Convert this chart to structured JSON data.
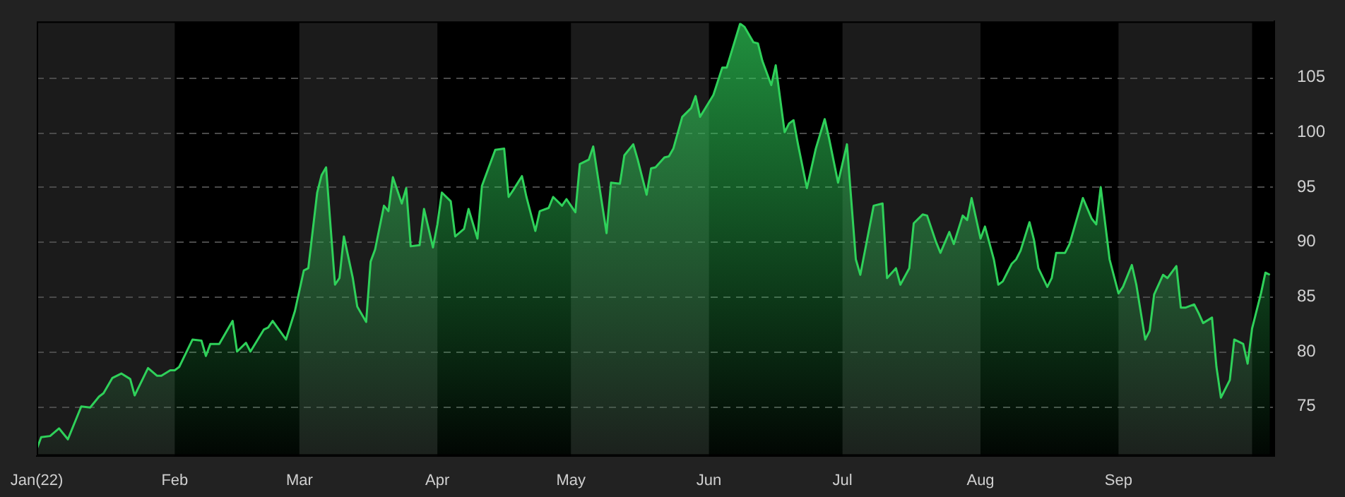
{
  "chart_data": {
    "type": "area",
    "x": [
      "2022-01-01",
      "2022-01-02",
      "2022-01-04",
      "2022-01-06",
      "2022-01-08",
      "2022-01-11",
      "2022-01-13",
      "2022-01-15",
      "2022-01-16",
      "2022-01-18",
      "2022-01-20",
      "2022-01-22",
      "2022-01-23",
      "2022-01-26",
      "2022-01-28",
      "2022-01-29",
      "2022-01-31",
      "2022-02-01",
      "2022-02-02",
      "2022-02-05",
      "2022-02-07",
      "2022-02-08",
      "2022-02-09",
      "2022-02-11",
      "2022-02-14",
      "2022-02-15",
      "2022-02-17",
      "2022-02-18",
      "2022-02-21",
      "2022-02-22",
      "2022-02-23",
      "2022-02-26",
      "2022-02-28",
      "2022-03-02",
      "2022-03-03",
      "2022-03-05",
      "2022-03-06",
      "2022-03-07",
      "2022-03-09",
      "2022-03-10",
      "2022-03-11",
      "2022-03-13",
      "2022-03-14",
      "2022-03-16",
      "2022-03-17",
      "2022-03-18",
      "2022-03-20",
      "2022-03-21",
      "2022-03-22",
      "2022-03-24",
      "2022-03-25",
      "2022-03-26",
      "2022-03-28",
      "2022-03-29",
      "2022-03-31",
      "2022-04-01",
      "2022-04-02",
      "2022-04-04",
      "2022-04-05",
      "2022-04-07",
      "2022-04-08",
      "2022-04-10",
      "2022-04-11",
      "2022-04-13",
      "2022-04-14",
      "2022-04-16",
      "2022-04-17",
      "2022-04-18",
      "2022-04-20",
      "2022-04-21",
      "2022-04-23",
      "2022-04-24",
      "2022-04-26",
      "2022-04-27",
      "2022-04-29",
      "2022-04-30",
      "2022-05-02",
      "2022-05-03",
      "2022-05-05",
      "2022-05-06",
      "2022-05-09",
      "2022-05-10",
      "2022-05-12",
      "2022-05-13",
      "2022-05-15",
      "2022-05-16",
      "2022-05-18",
      "2022-05-19",
      "2022-05-20",
      "2022-05-22",
      "2022-05-23",
      "2022-05-24",
      "2022-05-26",
      "2022-05-28",
      "2022-05-29",
      "2022-05-30",
      "2022-06-02",
      "2022-06-04",
      "2022-06-05",
      "2022-06-08",
      "2022-06-09",
      "2022-06-11",
      "2022-06-12",
      "2022-06-13",
      "2022-06-15",
      "2022-06-16",
      "2022-06-18",
      "2022-06-19",
      "2022-06-20",
      "2022-06-21",
      "2022-06-23",
      "2022-06-25",
      "2022-06-27",
      "2022-06-28",
      "2022-06-30",
      "2022-07-02",
      "2022-07-04",
      "2022-07-05",
      "2022-07-08",
      "2022-07-10",
      "2022-07-11",
      "2022-07-13",
      "2022-07-14",
      "2022-07-16",
      "2022-07-17",
      "2022-07-19",
      "2022-07-20",
      "2022-07-22",
      "2022-07-23",
      "2022-07-25",
      "2022-07-26",
      "2022-07-28",
      "2022-07-29",
      "2022-07-30",
      "2022-08-01",
      "2022-08-02",
      "2022-08-04",
      "2022-08-05",
      "2022-08-06",
      "2022-08-08",
      "2022-08-09",
      "2022-08-10",
      "2022-08-12",
      "2022-08-13",
      "2022-08-14",
      "2022-08-16",
      "2022-08-17",
      "2022-08-18",
      "2022-08-20",
      "2022-08-21",
      "2022-08-23",
      "2022-08-24",
      "2022-08-26",
      "2022-08-27",
      "2022-08-28",
      "2022-08-30",
      "2022-09-01",
      "2022-09-02",
      "2022-09-04",
      "2022-09-05",
      "2022-09-07",
      "2022-09-08",
      "2022-09-09",
      "2022-09-11",
      "2022-09-12",
      "2022-09-14",
      "2022-09-15",
      "2022-09-16",
      "2022-09-18",
      "2022-09-19",
      "2022-09-20",
      "2022-09-22",
      "2022-09-23",
      "2022-09-24",
      "2022-09-26",
      "2022-09-27",
      "2022-09-29",
      "2022-09-30",
      "2022-10-01",
      "2022-10-03",
      "2022-10-04",
      "2022-10-05"
    ],
    "series": [
      {
        "color": "#2fd15a",
        "values": [
          71.1,
          72.2,
          72.3,
          73.0,
          72.0,
          75.0,
          74.9,
          75.9,
          76.2,
          77.6,
          78.0,
          77.5,
          76.0,
          78.5,
          77.8,
          77.8,
          78.3,
          78.3,
          78.6,
          81.1,
          81.0,
          79.6,
          80.7,
          80.7,
          82.8,
          80.0,
          80.8,
          80.0,
          82.0,
          82.2,
          82.8,
          81.1,
          83.7,
          87.4,
          87.6,
          94.5,
          96.1,
          96.8,
          86.1,
          86.7,
          90.5,
          86.7,
          84.1,
          82.7,
          88.2,
          89.3,
          93.3,
          92.8,
          95.9,
          93.5,
          94.9,
          89.6,
          89.7,
          93.0,
          89.5,
          91.6,
          94.5,
          93.7,
          90.5,
          91.2,
          93.0,
          90.3,
          95.1,
          97.3,
          98.4,
          98.5,
          94.1,
          94.7,
          96.0,
          94.1,
          91.0,
          92.8,
          93.1,
          94.1,
          93.3,
          93.9,
          92.7,
          97.1,
          97.5,
          98.7,
          90.8,
          95.4,
          95.3,
          97.9,
          98.9,
          97.5,
          94.3,
          96.7,
          96.8,
          97.7,
          97.8,
          98.5,
          101.4,
          102.2,
          103.3,
          101.4,
          103.4,
          105.9,
          105.9,
          109.9,
          109.6,
          108.2,
          108.1,
          106.5,
          104.3,
          106.1,
          100.0,
          100.8,
          101.1,
          98.9,
          94.9,
          98.5,
          101.2,
          99.4,
          95.4,
          98.9,
          88.4,
          87.0,
          93.3,
          93.5,
          86.7,
          87.6,
          86.1,
          87.6,
          91.7,
          92.5,
          92.4,
          90.0,
          89.0,
          90.9,
          89.8,
          92.4,
          92.0,
          94.0,
          90.3,
          91.4,
          88.4,
          86.1,
          86.4,
          88.0,
          88.4,
          89.2,
          91.8,
          90.2,
          87.6,
          85.9,
          86.7,
          89.0,
          89.0,
          89.8,
          92.6,
          94.0,
          92.1,
          91.6,
          95.0,
          88.4,
          85.3,
          85.9,
          87.9,
          86.1,
          81.1,
          81.9,
          85.2,
          87.0,
          86.7,
          87.8,
          84.0,
          84.0,
          84.3,
          83.5,
          82.6,
          83.1,
          78.6,
          75.8,
          77.4,
          81.1,
          80.7,
          78.9,
          82.1,
          85.3,
          87.2,
          87.0
        ]
      }
    ],
    "xlim": [
      "2022-01-01",
      "2022-10-06"
    ],
    "xticks": [
      {
        "value": "2022-01-01",
        "label": "Jan(22)"
      },
      {
        "value": "2022-02-01",
        "label": "Feb"
      },
      {
        "value": "2022-03-01",
        "label": "Mar"
      },
      {
        "value": "2022-04-01",
        "label": "Apr"
      },
      {
        "value": "2022-05-01",
        "label": "May"
      },
      {
        "value": "2022-06-01",
        "label": "Jun"
      },
      {
        "value": "2022-07-01",
        "label": "Jul"
      },
      {
        "value": "2022-08-01",
        "label": "Aug"
      },
      {
        "value": "2022-09-01",
        "label": "Sep"
      }
    ],
    "bands": [
      {
        "axis": "x",
        "from": "2022-01-01",
        "to": "2022-02-01",
        "color": "#1b1b1b"
      },
      {
        "axis": "x",
        "from": "2022-03-01",
        "to": "2022-04-01",
        "color": "#1b1b1b"
      },
      {
        "axis": "x",
        "from": "2022-05-01",
        "to": "2022-06-01",
        "color": "#1b1b1b"
      },
      {
        "axis": "x",
        "from": "2022-07-01",
        "to": "2022-08-01",
        "color": "#1b1b1b"
      },
      {
        "axis": "x",
        "from": "2022-09-01",
        "to": "2022-10-01",
        "color": "#1b1b1b"
      }
    ],
    "ylim": [
      70.5,
      110.1
    ],
    "yticks": [
      75,
      80,
      85,
      90,
      95,
      100,
      105
    ],
    "grid": "y",
    "legend": false,
    "marker": "none",
    "line_style": "solid"
  }
}
